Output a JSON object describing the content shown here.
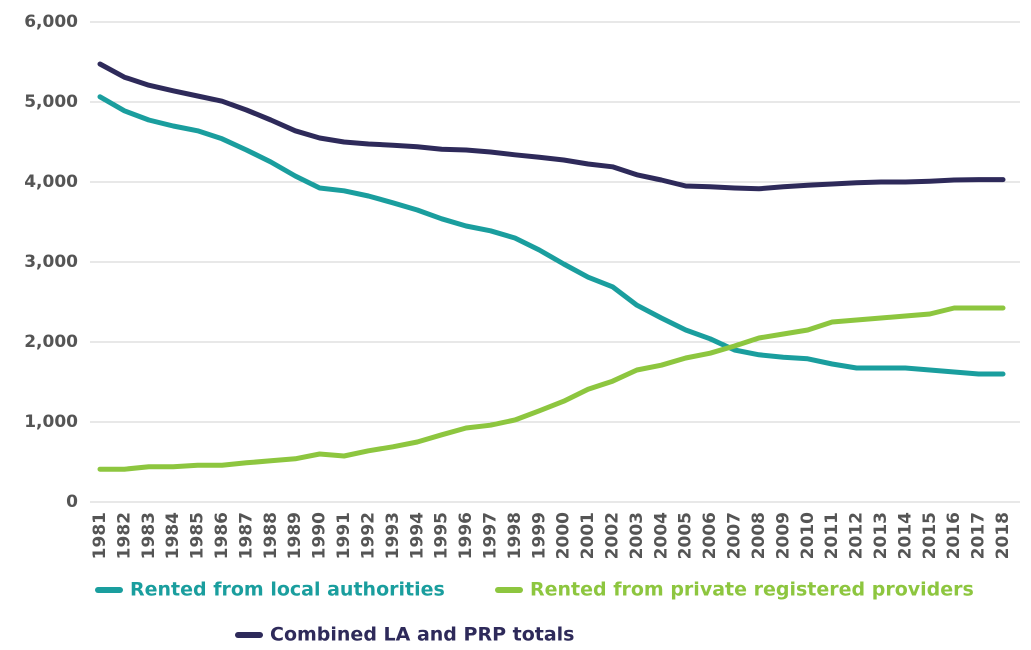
{
  "chart_data": {
    "type": "line",
    "categories": [
      "1981",
      "1982",
      "1983",
      "1984",
      "1985",
      "1986",
      "1987",
      "1988",
      "1989",
      "1990",
      "1991",
      "1992",
      "1993",
      "1994",
      "1995",
      "1996",
      "1997",
      "1998",
      "1999",
      "2000",
      "2001",
      "2002",
      "2003",
      "2004",
      "2005",
      "2006",
      "2007",
      "2008",
      "2009",
      "2010",
      "2011",
      "2012",
      "2013",
      "2014",
      "2015",
      "2016",
      "2017",
      "2018"
    ],
    "series": [
      {
        "name": "Rented from local authorities",
        "color": "#1a9e9e",
        "values": [
          5065,
          4890,
          4775,
          4700,
          4640,
          4540,
          4400,
          4250,
          4075,
          3925,
          3890,
          3825,
          3740,
          3650,
          3540,
          3450,
          3390,
          3300,
          3150,
          2975,
          2810,
          2690,
          2460,
          2300,
          2150,
          2040,
          1900,
          1840,
          1810,
          1790,
          1725,
          1675,
          1675,
          1675,
          1650,
          1625,
          1600,
          1600
        ]
      },
      {
        "name": "Rented from private registered providers",
        "color": "#8dc63f",
        "values": [
          410,
          410,
          440,
          440,
          460,
          460,
          490,
          515,
          540,
          600,
          575,
          640,
          690,
          750,
          840,
          925,
          960,
          1025,
          1140,
          1260,
          1410,
          1510,
          1650,
          1710,
          1800,
          1860,
          1950,
          2050,
          2100,
          2150,
          2250,
          2275,
          2300,
          2325,
          2350,
          2425,
          2425,
          2425
        ]
      },
      {
        "name": "Combined LA and PRP totals",
        "color": "#2e2a5a",
        "values": [
          5475,
          5310,
          5210,
          5140,
          5075,
          5010,
          4900,
          4775,
          4640,
          4550,
          4500,
          4475,
          4460,
          4440,
          4410,
          4400,
          4375,
          4340,
          4310,
          4275,
          4225,
          4190,
          4090,
          4025,
          3950,
          3940,
          3925,
          3915,
          3940,
          3960,
          3975,
          3990,
          4000,
          4000,
          4010,
          4025,
          4030,
          4030
        ]
      }
    ],
    "ylim": [
      0,
      6000
    ],
    "yticks": [
      0,
      {
        "value": 1000,
        "label": "1,000"
      },
      {
        "value": 2000,
        "label": "2,000"
      },
      {
        "value": 3000,
        "label": "3,000"
      },
      {
        "value": 4000,
        "label": "4,000"
      },
      {
        "value": 5000,
        "label": "5,000"
      },
      {
        "value": 6000,
        "label": "6,000"
      }
    ],
    "grid": true
  }
}
